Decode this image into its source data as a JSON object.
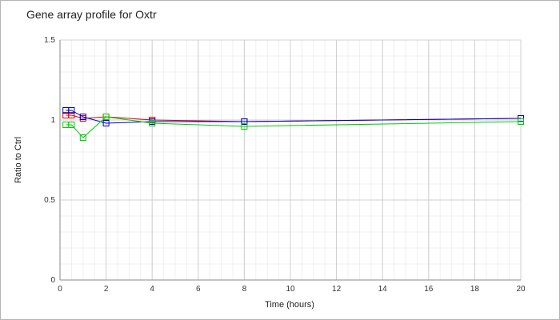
{
  "chart_data": {
    "type": "line",
    "title": "Gene array profile for Oxtr",
    "xlabel": "Time (hours)",
    "ylabel": "Ratio to Ctrl",
    "xlim": [
      0,
      20
    ],
    "ylim": [
      0,
      1.5
    ],
    "x_ticks": [
      "0",
      "2",
      "4",
      "6",
      "8",
      "10",
      "12",
      "14",
      "16",
      "18",
      "20"
    ],
    "y_ticks": [
      "0",
      "0.5",
      "1",
      "1.5"
    ],
    "grid": true,
    "marker": "square",
    "series": [
      {
        "color": "#dd0000",
        "x": [
          0.25,
          0.5,
          1,
          2,
          4,
          8,
          20
        ],
        "y": [
          1.03,
          1.03,
          1.01,
          1.02,
          1.0,
          0.99,
          1.01
        ]
      },
      {
        "color": "#0000cc",
        "x": [
          0.25,
          0.5,
          1,
          2,
          4,
          8,
          20
        ],
        "y": [
          1.06,
          1.06,
          1.02,
          0.98,
          0.99,
          0.99,
          1.01
        ]
      },
      {
        "color": "#00cc00",
        "x": [
          0.25,
          0.5,
          1,
          2,
          4,
          8,
          20
        ],
        "y": [
          0.97,
          0.97,
          0.89,
          1.02,
          0.98,
          0.96,
          0.99
        ]
      }
    ]
  }
}
